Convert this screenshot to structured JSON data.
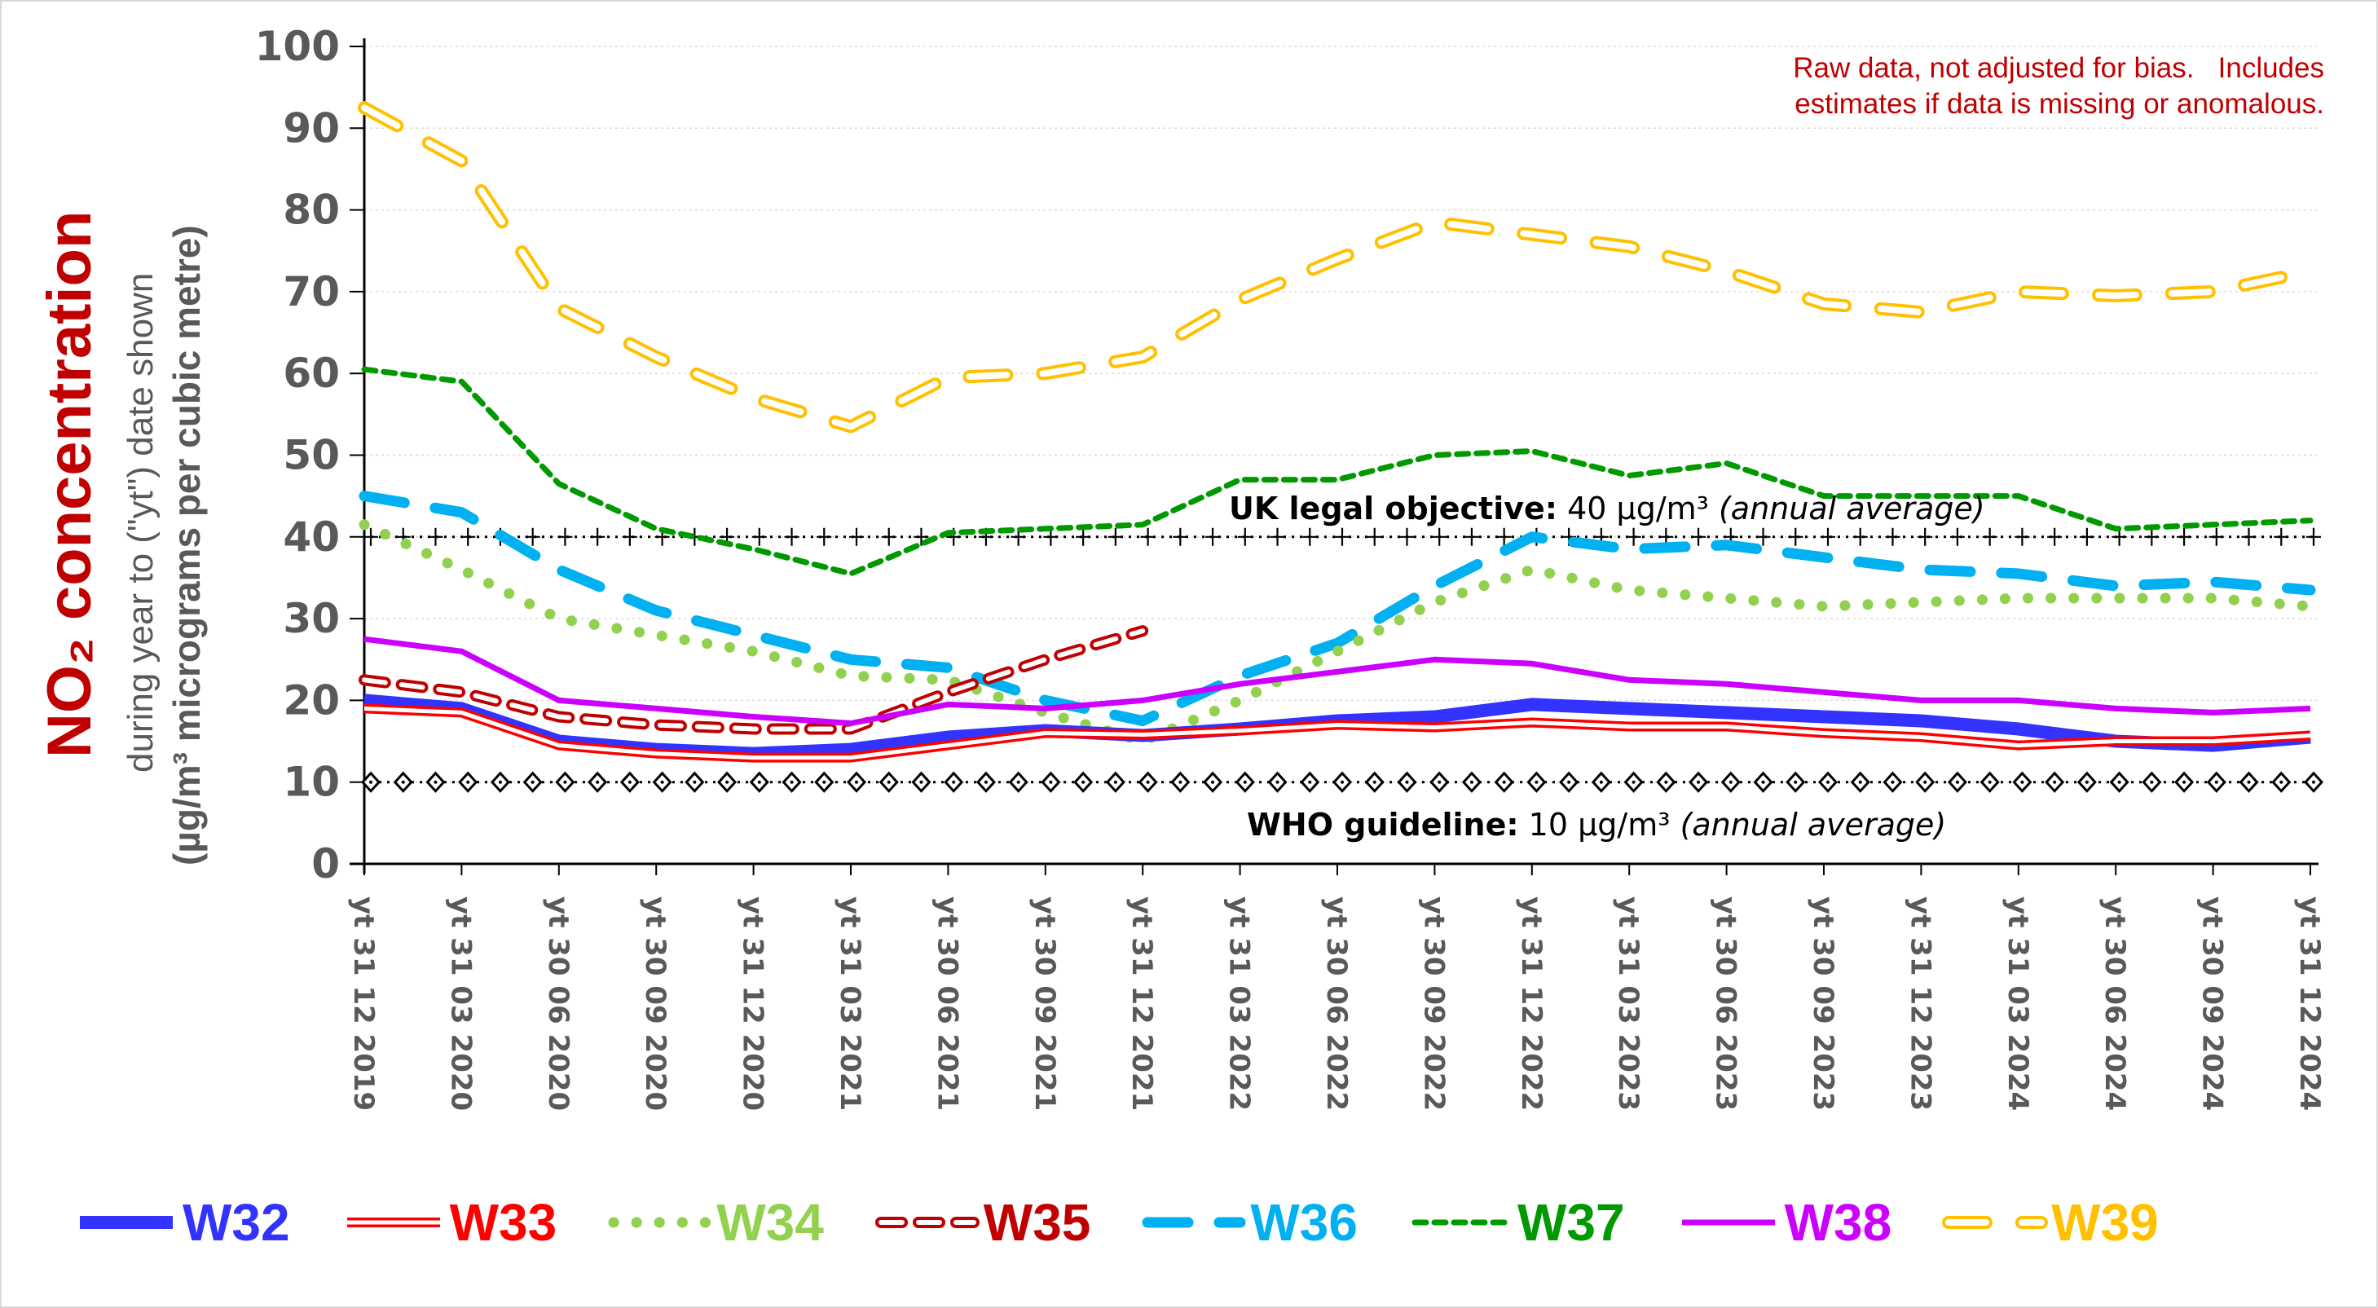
{
  "chart_data": {
    "type": "line",
    "title": "NO2 concentration",
    "ylabel_main": "NO₂ concentration",
    "ylabel_sub1": "during year to (\"yt\") date shown",
    "ylabel_sub2": "(µg/m³ micrograms per cubic metre)",
    "xlabel": "",
    "ylim": [
      0,
      100
    ],
    "yticks": [
      0,
      10,
      20,
      30,
      40,
      50,
      60,
      70,
      80,
      90,
      100
    ],
    "grid": true,
    "legend_position": "bottom",
    "categories": [
      "yt 31 12 2019",
      "yt 31 03 2020",
      "yt 30 06 2020",
      "yt 30 09 2020",
      "yt 31 12 2020",
      "yt 31 03 2021",
      "yt 30 06 2021",
      "yt 30 09 2021",
      "yt 31 12 2021",
      "yt 31 03 2022",
      "yt 30 06 2022",
      "yt 30 09 2022",
      "yt 31 12 2022",
      "yt 31 03 2023",
      "yt 30 06 2023",
      "yt 30 09 2023",
      "yt 31 12 2023",
      "yt 31 03 2024",
      "yt 30 06 2024",
      "yt 30 09 2024",
      "yt 31 12 2024"
    ],
    "series": [
      {
        "name": "W32",
        "color": "#3333ff",
        "style": "thick-solid",
        "values": [
          20,
          19,
          15,
          14,
          13.5,
          14,
          15.5,
          16.3,
          15.7,
          16.5,
          17.5,
          18,
          19.5,
          19,
          18.5,
          18,
          17.5,
          16.5,
          15,
          14.5,
          15.5
        ]
      },
      {
        "name": "W33",
        "color": "#ff0000",
        "style": "double-outline",
        "values": [
          19,
          18.5,
          14.5,
          13.5,
          13,
          13,
          14.5,
          16,
          15.8,
          16.3,
          17,
          16.7,
          17.3,
          16.8,
          16.8,
          16,
          15.5,
          14.5,
          15,
          15,
          15.7
        ]
      },
      {
        "name": "W34",
        "color": "#92d050",
        "style": "round-dot",
        "values": [
          41.5,
          36,
          30,
          28,
          26,
          23,
          22.5,
          18.5,
          15,
          20,
          26,
          32,
          36,
          33.5,
          32.5,
          31.5,
          32,
          32.5,
          32.5,
          32.5,
          31.5
        ]
      },
      {
        "name": "W35",
        "color": "#c00000",
        "style": "outline-dash",
        "values": [
          22.5,
          21,
          18,
          17,
          16.5,
          16.5,
          21,
          25,
          28.5,
          null,
          null,
          null,
          null,
          null,
          null,
          null,
          null,
          null,
          null,
          null,
          null
        ]
      },
      {
        "name": "W36",
        "color": "#00b0f0",
        "style": "long-dash",
        "values": [
          45,
          43,
          36,
          31,
          28,
          25,
          24,
          20,
          17.5,
          23,
          27,
          34,
          40,
          38.5,
          39,
          37.5,
          36,
          35.5,
          34,
          34.5,
          33.5
        ]
      },
      {
        "name": "W37",
        "color": "#009900",
        "style": "short-dash",
        "values": [
          60.5,
          59,
          46.5,
          41,
          38.5,
          35.5,
          40.5,
          41,
          41.5,
          47,
          47,
          50,
          50.5,
          47.5,
          49,
          45,
          45,
          45,
          41,
          41.5,
          42
        ]
      },
      {
        "name": "W38",
        "color": "#cc00ff",
        "style": "solid",
        "values": [
          27.5,
          26,
          20,
          19,
          18,
          17.2,
          19.5,
          19,
          20,
          22,
          23.5,
          25,
          24.5,
          22.5,
          22,
          21,
          20,
          20,
          19,
          18.5,
          19
        ]
      },
      {
        "name": "W39",
        "color": "#ffc000",
        "style": "outline-long-dash",
        "values": [
          92.5,
          86,
          68,
          62,
          57,
          53.5,
          59.5,
          60,
          62,
          69,
          74,
          78.5,
          77,
          75.5,
          72.5,
          68.5,
          67.5,
          70,
          69.5,
          70,
          72.5
        ]
      }
    ],
    "reference_lines": [
      {
        "value": 40,
        "bold": "UK legal objective:",
        "text": "40 µg/m³",
        "italic": "(annual average)",
        "marker": "plus"
      },
      {
        "value": 10,
        "bold": "WHO guideline:",
        "text": "10 µg/m³",
        "italic": "(annual average)",
        "marker": "diamond"
      }
    ],
    "annotation": "Raw data, not adjusted for bias.   Includes\nestimates if data is missing or anomalous."
  }
}
